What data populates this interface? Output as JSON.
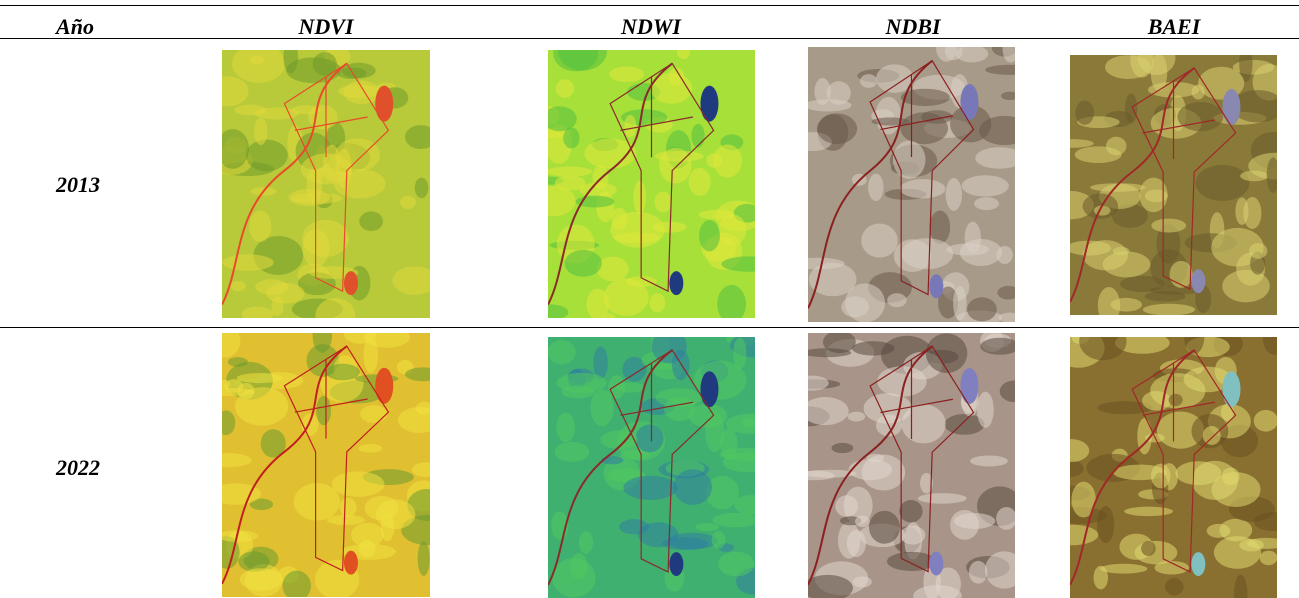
{
  "table": {
    "header": [
      "Año",
      "NDVI",
      "NDWI",
      "NDBI",
      "BAEI"
    ],
    "rows": [
      [
        "2013"
      ],
      [
        "2022"
      ]
    ]
  }
}
